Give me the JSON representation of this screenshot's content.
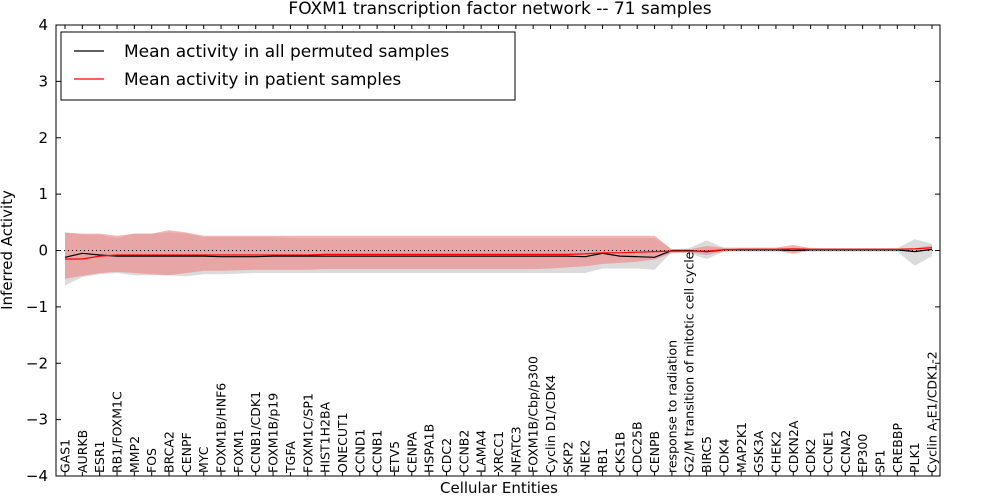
{
  "chart_data": {
    "type": "line",
    "title": "FOXM1 transcription factor network -- 71 samples",
    "xlabel": "Cellular Entities",
    "ylabel": "Inferred Activity",
    "ylim": [
      -4,
      4
    ],
    "yticks": [
      "4",
      "3",
      "2",
      "1",
      "0",
      "−1",
      "−2",
      "−3",
      "−4"
    ],
    "grid": false,
    "legend_position": "top-left",
    "categories": [
      "GAS1",
      "AURKB",
      "ESR1",
      "RB1/FOXM1C",
      "MMP2",
      "FOS",
      "BRCA2",
      "CENPF",
      "MYC",
      "FOXM1B/HNF6",
      "FOXM1",
      "CCNB1/CDK1",
      "FOXM1B/p19",
      "TGFA",
      "FOXM1C/SP1",
      "HIST1H2BA",
      "ONECUT1",
      "CCND1",
      "CCNB1",
      "ETV5",
      "CENPA",
      "HSPA1B",
      "CDC2",
      "CCNB2",
      "LAMA4",
      "XRCC1",
      "NFATC3",
      "FOXM1B/Cbp/p300",
      "Cyclin D1/CDK4",
      "SKP2",
      "NEK2",
      "RB1",
      "CKS1B",
      "CDC25B",
      "CENPB",
      "response to radiation",
      "G2/M transition of mitotic cell cycle",
      "BIRC5",
      "CDK4",
      "MAP2K1",
      "GSK3A",
      "CHEK2",
      "CDKN2A",
      "CDK2",
      "CCNE1",
      "CCNA2",
      "EP300",
      "SP1",
      "CREBBP",
      "PLK1",
      "Cyclin A-E1/CDK1-2"
    ],
    "series": [
      {
        "name": "Mean activity in all permuted samples",
        "color": "#000000",
        "band_color": "#b0b0b0",
        "values": [
          -0.12,
          -0.05,
          -0.08,
          -0.1,
          -0.1,
          -0.1,
          -0.1,
          -0.1,
          -0.1,
          -0.11,
          -0.11,
          -0.11,
          -0.1,
          -0.1,
          -0.1,
          -0.1,
          -0.1,
          -0.1,
          -0.1,
          -0.1,
          -0.1,
          -0.1,
          -0.1,
          -0.1,
          -0.1,
          -0.1,
          -0.1,
          -0.1,
          -0.1,
          -0.1,
          -0.11,
          -0.05,
          -0.1,
          -0.11,
          -0.12,
          0.0,
          0.0,
          -0.02,
          0.01,
          0.01,
          0.01,
          0.01,
          0.0,
          0.01,
          0.01,
          0.01,
          0.01,
          0.01,
          0.01,
          -0.02,
          0.02
        ],
        "lower": [
          -0.62,
          -0.47,
          -0.42,
          -0.4,
          -0.44,
          -0.44,
          -0.44,
          -0.46,
          -0.42,
          -0.42,
          -0.41,
          -0.4,
          -0.4,
          -0.4,
          -0.4,
          -0.4,
          -0.4,
          -0.4,
          -0.4,
          -0.4,
          -0.4,
          -0.4,
          -0.4,
          -0.4,
          -0.4,
          -0.4,
          -0.4,
          -0.4,
          -0.4,
          -0.4,
          -0.4,
          -0.32,
          -0.32,
          -0.32,
          -0.34,
          -0.02,
          -0.05,
          -0.15,
          -0.02,
          -0.02,
          -0.02,
          -0.02,
          -0.02,
          -0.02,
          -0.02,
          -0.02,
          -0.02,
          -0.02,
          -0.02,
          -0.27,
          -0.1
        ],
        "upper": [
          0.32,
          0.28,
          0.28,
          0.22,
          0.3,
          0.3,
          0.32,
          0.3,
          0.24,
          0.24,
          0.24,
          0.24,
          0.24,
          0.22,
          0.22,
          0.22,
          0.22,
          0.22,
          0.22,
          0.22,
          0.22,
          0.22,
          0.22,
          0.22,
          0.22,
          0.22,
          0.22,
          0.22,
          0.22,
          0.22,
          0.22,
          0.22,
          0.22,
          0.22,
          0.22,
          0.02,
          0.04,
          0.18,
          0.05,
          0.05,
          0.05,
          0.05,
          0.05,
          0.05,
          0.04,
          0.04,
          0.04,
          0.04,
          0.04,
          0.2,
          0.12
        ]
      },
      {
        "name": "Mean activity in patient samples",
        "color": "#ff0000",
        "band_color": "#ee8080",
        "values": [
          -0.15,
          -0.15,
          -0.1,
          -0.08,
          -0.08,
          -0.08,
          -0.08,
          -0.08,
          -0.08,
          -0.08,
          -0.08,
          -0.08,
          -0.08,
          -0.08,
          -0.08,
          -0.07,
          -0.07,
          -0.07,
          -0.07,
          -0.07,
          -0.07,
          -0.07,
          -0.07,
          -0.07,
          -0.07,
          -0.07,
          -0.07,
          -0.07,
          -0.07,
          -0.07,
          -0.06,
          -0.04,
          -0.04,
          -0.03,
          -0.02,
          -0.01,
          -0.01,
          -0.01,
          0.01,
          0.02,
          0.02,
          0.02,
          0.03,
          0.02,
          0.02,
          0.02,
          0.02,
          0.02,
          0.02,
          0.03,
          0.05
        ],
        "lower": [
          -0.5,
          -0.45,
          -0.4,
          -0.38,
          -0.4,
          -0.42,
          -0.44,
          -0.4,
          -0.36,
          -0.36,
          -0.35,
          -0.34,
          -0.34,
          -0.34,
          -0.34,
          -0.33,
          -0.33,
          -0.33,
          -0.33,
          -0.33,
          -0.33,
          -0.33,
          -0.33,
          -0.33,
          -0.33,
          -0.33,
          -0.33,
          -0.33,
          -0.32,
          -0.3,
          -0.28,
          -0.24,
          -0.22,
          -0.2,
          -0.16,
          -0.05,
          -0.03,
          -0.08,
          -0.01,
          0.0,
          0.0,
          0.0,
          -0.06,
          0.0,
          0.0,
          0.0,
          0.0,
          0.0,
          0.0,
          0.0,
          0.02
        ],
        "upper": [
          0.32,
          0.3,
          0.3,
          0.26,
          0.3,
          0.3,
          0.36,
          0.32,
          0.26,
          0.26,
          0.26,
          0.26,
          0.26,
          0.26,
          0.26,
          0.26,
          0.26,
          0.26,
          0.26,
          0.26,
          0.26,
          0.26,
          0.26,
          0.26,
          0.26,
          0.26,
          0.26,
          0.26,
          0.26,
          0.26,
          0.26,
          0.26,
          0.26,
          0.26,
          0.26,
          0.02,
          0.02,
          0.08,
          0.05,
          0.05,
          0.05,
          0.05,
          0.1,
          0.04,
          0.04,
          0.04,
          0.04,
          0.04,
          0.04,
          0.04,
          0.09
        ]
      }
    ]
  }
}
